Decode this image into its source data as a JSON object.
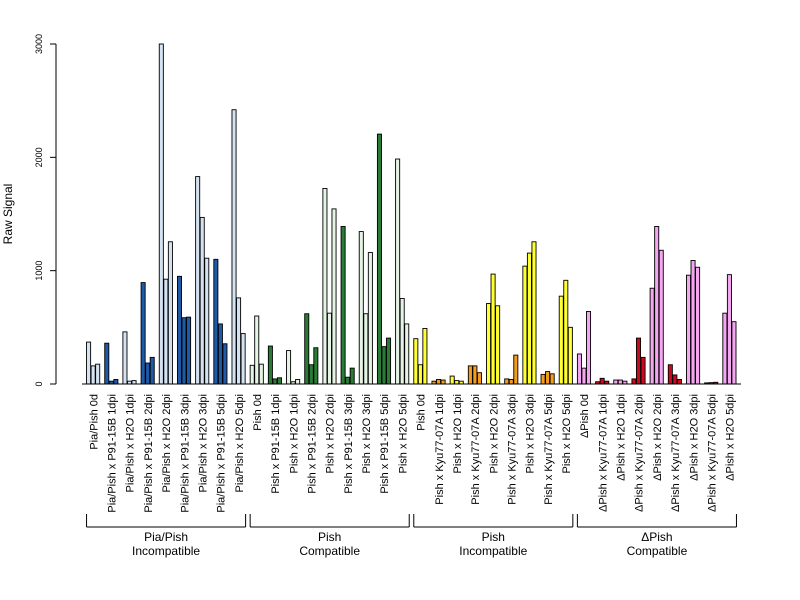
{
  "chart_data": {
    "type": "bar",
    "ylabel": "Raw Signal",
    "ylim": [
      0,
      3000
    ],
    "yticks": [
      "0",
      "1000",
      "2000",
      "3000"
    ],
    "grid": false,
    "bars_per_category": 3,
    "categories": [
      "Pia/Pish 0d",
      "Pia/Pish x P91-15B 1dpi",
      "Pia/Pish x H2O 1dpi",
      "Pia/Pish x P91-15B 2dpi",
      "Pia/Pish x H2O 2dpi",
      "Pia/Pish x P91-15B 3dpi",
      "Pia/Pish x H2O 3dpi",
      "Pia/Pish x P91-15B 5dpi",
      "Pia/Pish x H2O 5dpi",
      "Pish 0d",
      "Pish x P91-15B 1dpi",
      "Pish x H2O 1dpi",
      "Pish x P91-15B 2dpi",
      "Pish x H2O 2dpi",
      "Pish x P91-15B 3dpi",
      "Pish x H2O 3dpi",
      "Pish x P91-15B 5dpi",
      "Pish x H2O 5dpi",
      "Pish 0d",
      "Pish x Kyu77-07A 1dpi",
      "Pish x H2O 1dpi",
      "Pish x Kyu77-07A 2dpi",
      "Pish x H2O 2dpi",
      "Pish x Kyu77-07A 3dpi",
      "Pish x H2O 3dpi",
      "Pish x Kyu77-07A 5dpi",
      "Pish x H2O 5dpi",
      "ΔPish 0d",
      "ΔPish x Kyu77-07A 1dpi",
      "ΔPish x H2O 1dpi",
      "ΔPish x Kyu77-07A 2dpi",
      "ΔPish x H2O 2dpi",
      "ΔPish x Kyu77-07A 3dpi",
      "ΔPish x H2O 3dpi",
      "ΔPish x Kyu77-07A 5dpi",
      "ΔPish x H2O 5dpi"
    ],
    "values": [
      [
        370,
        160,
        175
      ],
      [
        360,
        25,
        40
      ],
      [
        460,
        25,
        30
      ],
      [
        895,
        185,
        235
      ],
      [
        3000,
        925,
        1255
      ],
      [
        950,
        585,
        590
      ],
      [
        1830,
        1470,
        1110
      ],
      [
        1100,
        530,
        355
      ],
      [
        2420,
        760,
        445
      ],
      [
        165,
        600,
        175
      ],
      [
        335,
        45,
        55
      ],
      [
        295,
        20,
        40
      ],
      [
        620,
        170,
        320
      ],
      [
        1725,
        625,
        1545
      ],
      [
        1390,
        60,
        140
      ],
      [
        1345,
        620,
        1160
      ],
      [
        2205,
        330,
        405
      ],
      [
        1985,
        755,
        530
      ],
      [
        400,
        170,
        490
      ],
      [
        25,
        40,
        35
      ],
      [
        70,
        30,
        25
      ],
      [
        160,
        160,
        100
      ],
      [
        710,
        970,
        690
      ],
      [
        45,
        40,
        255
      ],
      [
        1040,
        1155,
        1255
      ],
      [
        85,
        110,
        90
      ],
      [
        775,
        915,
        500
      ],
      [
        265,
        140,
        640
      ],
      [
        20,
        50,
        25
      ],
      [
        35,
        35,
        25
      ],
      [
        45,
        405,
        235
      ],
      [
        845,
        1390,
        1180
      ],
      [
        170,
        80,
        40
      ],
      [
        960,
        1090,
        1030
      ],
      [
        10,
        12,
        15
      ],
      [
        625,
        965,
        550
      ]
    ],
    "groups": [
      {
        "line1": "Pia/Pish",
        "line2": "Incompatible"
      },
      {
        "line1": "Pish",
        "line2": "Compatible"
      },
      {
        "line1": "Pish",
        "line2": "Incompatible"
      },
      {
        "line1": "ΔPish",
        "line2": "Compatible"
      }
    ],
    "colors": {
      "g0_mock": "#d4e2f2",
      "g0_infected": "#1f5aa6",
      "g1_mock": "#e6f4e6",
      "g1_infected": "#2a7b36",
      "g2_mock": "#ffff33",
      "g2_infected": "#f39c1f",
      "g3_mock": "#f4a6f0",
      "g3_infected": "#cc0a1e",
      "axis": "#000000"
    }
  }
}
